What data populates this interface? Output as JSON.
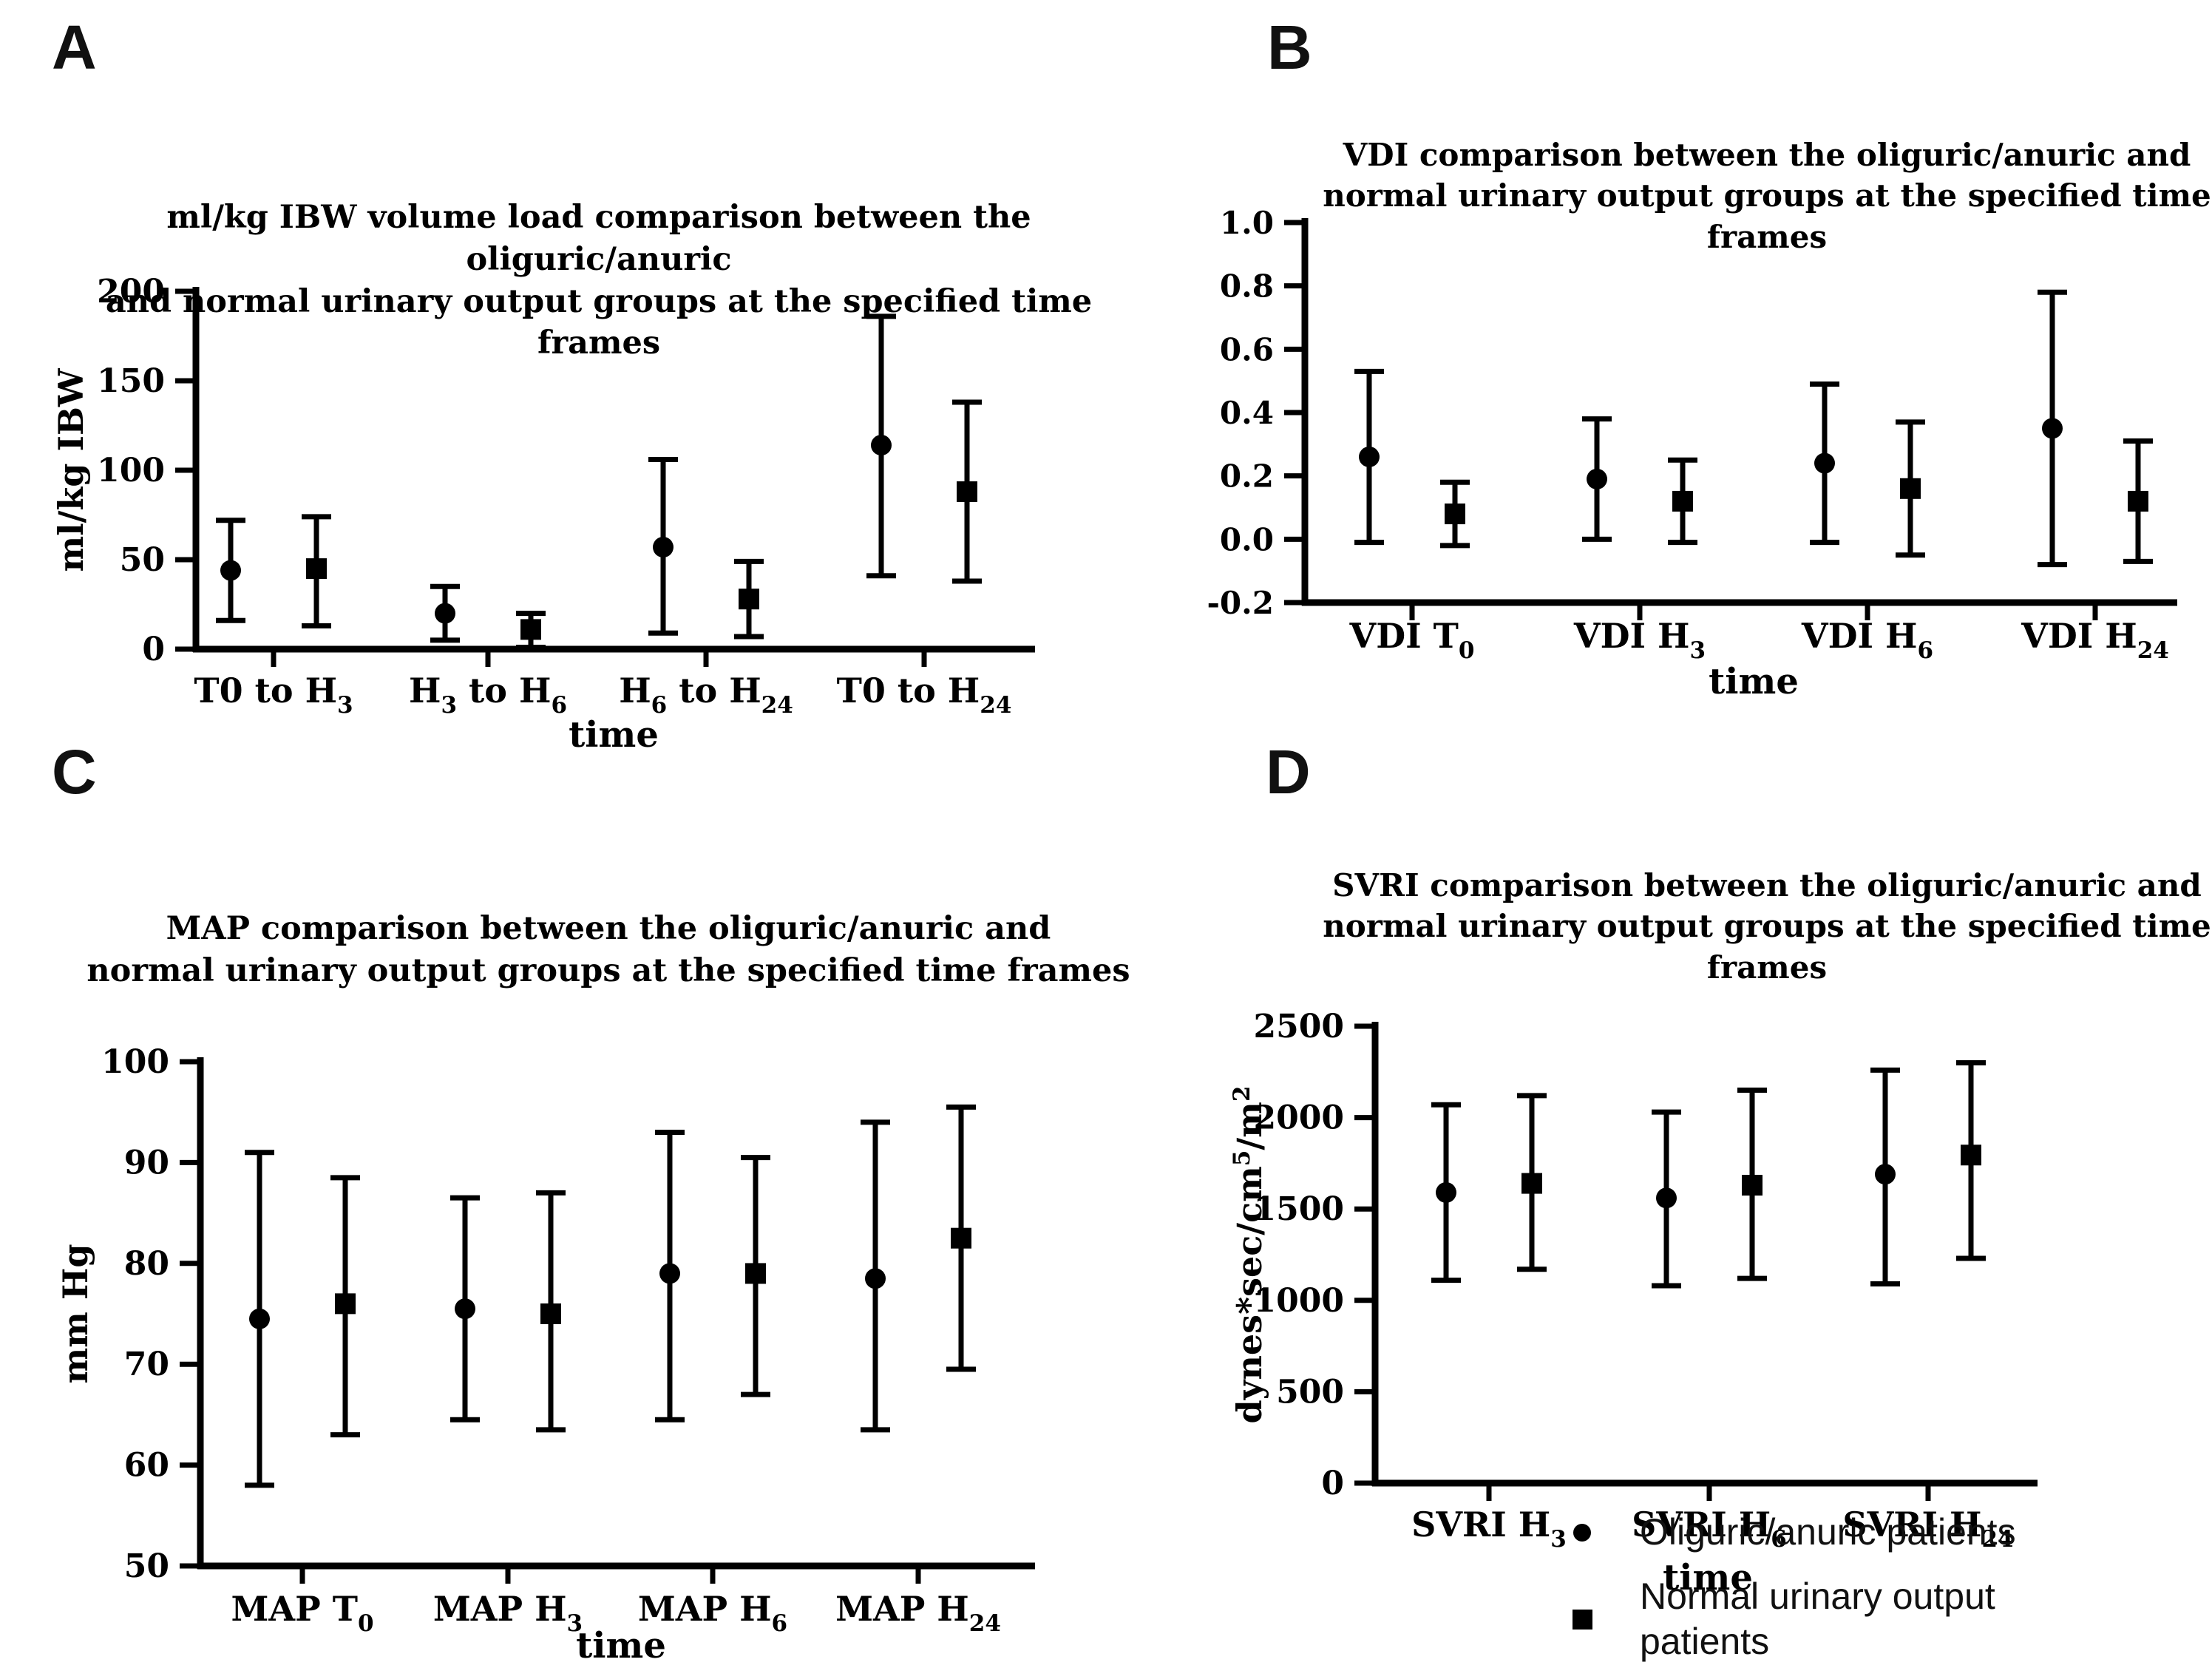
{
  "legend": {
    "items": [
      {
        "label": "Oliguric/anuric patients",
        "marker": "circle"
      },
      {
        "label": "Normal urinary output patients",
        "marker": "square"
      }
    ],
    "position": "bottom-right"
  },
  "chart_data": [
    {
      "panel": "A",
      "type": "errorbar",
      "title": "ml/kg IBW volume load comparison between the oliguric/anuric\nand normal urinary output groups at the specified time frames",
      "xlabel": "time",
      "ylabel": "ml/kg IBW",
      "ylim": [
        0,
        200
      ],
      "grid": false,
      "yticks": [
        {
          "v": 0,
          "label": "0"
        },
        {
          "v": 50,
          "label": "50"
        },
        {
          "v": 100,
          "label": "100"
        },
        {
          "v": 150,
          "label": "150"
        },
        {
          "v": 200,
          "label": "200"
        }
      ],
      "categories": [
        "T0 to H₃",
        "H₃ to H₆",
        "H₆ to H₂₄",
        "T0 to H₂₄"
      ],
      "series": [
        {
          "name": "Oliguric/anuric patients",
          "marker": "circle",
          "mean": [
            44,
            20,
            57,
            114
          ],
          "lo": [
            16,
            5,
            9,
            41
          ],
          "hi": [
            72,
            35,
            106,
            186
          ]
        },
        {
          "name": "Normal urinary output patients",
          "marker": "square",
          "mean": [
            45,
            11,
            28,
            88
          ],
          "lo": [
            13,
            1,
            7,
            38
          ],
          "hi": [
            74,
            20,
            49,
            138
          ]
        }
      ]
    },
    {
      "panel": "B",
      "type": "errorbar",
      "title": "VDI comparison between the oliguric/anuric and\nnormal urinary output groups at the specified time frames",
      "xlabel": "time",
      "ylabel": "",
      "ylim": [
        -0.2,
        1.0
      ],
      "grid": false,
      "yticks": [
        {
          "v": -0.2,
          "label": "-0.2"
        },
        {
          "v": 0.0,
          "label": "0.0"
        },
        {
          "v": 0.2,
          "label": "0.2"
        },
        {
          "v": 0.4,
          "label": "0.4"
        },
        {
          "v": 0.6,
          "label": "0.6"
        },
        {
          "v": 0.8,
          "label": "0.8"
        },
        {
          "v": 1.0,
          "label": "1.0"
        }
      ],
      "categories": [
        "VDI T₀",
        "VDI H₃",
        "VDI H₆",
        "VDI H₂₄"
      ],
      "series": [
        {
          "name": "Oliguric/anuric patients",
          "marker": "circle",
          "mean": [
            0.26,
            0.19,
            0.24,
            0.35
          ],
          "lo": [
            -0.01,
            0.0,
            -0.01,
            -0.08
          ],
          "hi": [
            0.53,
            0.38,
            0.49,
            0.78
          ]
        },
        {
          "name": "Normal urinary output patients",
          "marker": "square",
          "mean": [
            0.08,
            0.12,
            0.16,
            0.12
          ],
          "lo": [
            -0.02,
            -0.01,
            -0.05,
            -0.07
          ],
          "hi": [
            0.18,
            0.25,
            0.37,
            0.31
          ]
        }
      ]
    },
    {
      "panel": "C",
      "type": "errorbar",
      "title": "MAP comparison between the oliguric/anuric and\nnormal urinary output groups  at the specified time frames",
      "xlabel": "time",
      "ylabel": "mm Hg",
      "ylim": [
        50,
        100
      ],
      "grid": false,
      "yticks": [
        {
          "v": 50,
          "label": "50"
        },
        {
          "v": 60,
          "label": "60"
        },
        {
          "v": 70,
          "label": "70"
        },
        {
          "v": 80,
          "label": "80"
        },
        {
          "v": 90,
          "label": "90"
        },
        {
          "v": 100,
          "label": "100"
        }
      ],
      "categories": [
        "MAP T₀",
        "MAP H₃",
        "MAP H₆",
        "MAP H₂₄"
      ],
      "series": [
        {
          "name": "Oliguric/anuric patients",
          "marker": "circle",
          "mean": [
            74.5,
            75.5,
            79,
            78.5
          ],
          "lo": [
            58,
            64.5,
            64.5,
            63.5
          ],
          "hi": [
            91,
            86.5,
            93,
            94
          ]
        },
        {
          "name": "Normal urinary output patients",
          "marker": "square",
          "mean": [
            76,
            75,
            79,
            82.5
          ],
          "lo": [
            63,
            63.5,
            67,
            69.5
          ],
          "hi": [
            88.5,
            87,
            90.5,
            95.5
          ]
        }
      ]
    },
    {
      "panel": "D",
      "type": "errorbar",
      "title": "SVRI comparison between the oliguric/anuric and\nnormal urinary output groups at the specified time frames",
      "xlabel": "time",
      "ylabel": "dynes*sec/cm⁵/m²",
      "ylim": [
        0,
        2500
      ],
      "grid": false,
      "yticks": [
        {
          "v": 0,
          "label": "0"
        },
        {
          "v": 500,
          "label": "500"
        },
        {
          "v": 1000,
          "label": "1000"
        },
        {
          "v": 1500,
          "label": "1500"
        },
        {
          "v": 2000,
          "label": "2000"
        },
        {
          "v": 2500,
          "label": "2500"
        }
      ],
      "categories": [
        "SVRI H₃",
        "SVRI H₆",
        "SVRI H₂₄"
      ],
      "series": [
        {
          "name": "Oliguric/anuric patients",
          "marker": "circle",
          "mean": [
            1590,
            1560,
            1690
          ],
          "lo": [
            1110,
            1080,
            1090
          ],
          "hi": [
            2070,
            2030,
            2260
          ]
        },
        {
          "name": "Normal urinary output patients",
          "marker": "square",
          "mean": [
            1640,
            1630,
            1795
          ],
          "lo": [
            1170,
            1120,
            1230
          ],
          "hi": [
            2120,
            2150,
            2300
          ]
        }
      ]
    }
  ]
}
